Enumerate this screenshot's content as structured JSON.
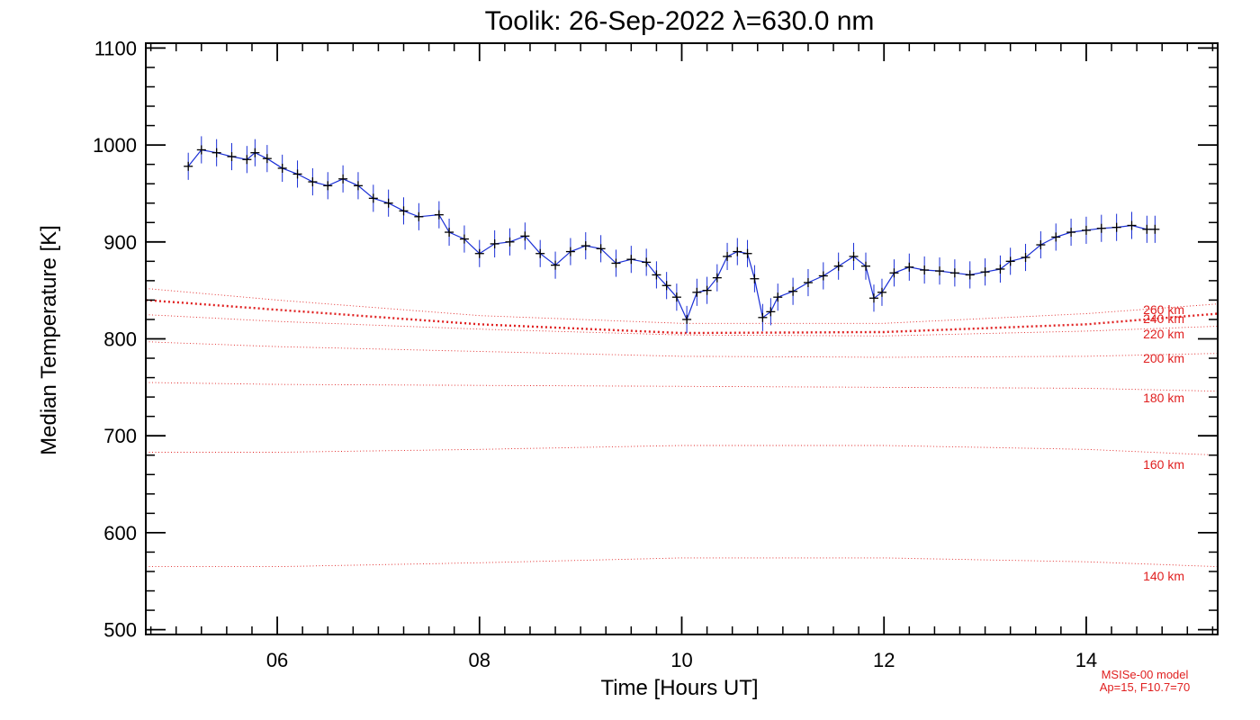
{
  "chart_data": {
    "type": "line",
    "title": "Toolik: 26-Sep-2022 λ=630.0 nm",
    "xlabel": "Time [Hours UT]",
    "ylabel": "Median Temperature [K]",
    "xlim": [
      4.7,
      15.3
    ],
    "ylim": [
      495,
      1105
    ],
    "x_ticks": [
      6,
      8,
      10,
      12,
      14
    ],
    "x_tick_labels": [
      "06",
      "08",
      "10",
      "12",
      "14"
    ],
    "y_ticks": [
      500,
      600,
      700,
      800,
      900,
      1000,
      1100
    ],
    "y_tick_labels": [
      "500",
      "600",
      "700",
      "800",
      "900",
      "1000",
      "1100"
    ],
    "grid": false,
    "observed_series": {
      "color": "#000000",
      "error_color": "#1a2fd6",
      "error_bar_k": 14,
      "x": [
        5.12,
        5.25,
        5.4,
        5.55,
        5.7,
        5.78,
        5.9,
        6.05,
        6.2,
        6.35,
        6.5,
        6.65,
        6.8,
        6.95,
        7.1,
        7.25,
        7.4,
        7.6,
        7.7,
        7.85,
        8.0,
        8.15,
        8.3,
        8.45,
        8.6,
        8.75,
        8.9,
        9.05,
        9.2,
        9.35,
        9.5,
        9.65,
        9.75,
        9.85,
        9.95,
        10.05,
        10.15,
        10.25,
        10.35,
        10.45,
        10.55,
        10.65,
        10.72,
        10.8,
        10.88,
        10.95,
        11.1,
        11.25,
        11.4,
        11.55,
        11.7,
        11.82,
        11.9,
        11.98,
        12.1,
        12.25,
        12.4,
        12.55,
        12.7,
        12.85,
        13.0,
        13.15,
        13.25,
        13.4,
        13.55,
        13.7,
        13.85,
        14.0,
        14.15,
        14.3,
        14.45,
        14.6,
        14.68
      ],
      "y": [
        978,
        995,
        992,
        988,
        985,
        992,
        986,
        976,
        970,
        962,
        958,
        965,
        958,
        945,
        940,
        932,
        926,
        928,
        910,
        903,
        888,
        898,
        900,
        906,
        888,
        876,
        890,
        896,
        893,
        878,
        882,
        879,
        866,
        855,
        843,
        820,
        848,
        850,
        863,
        885,
        890,
        888,
        862,
        822,
        828,
        843,
        849,
        858,
        865,
        875,
        885,
        875,
        842,
        848,
        868,
        874,
        871,
        870,
        868,
        866,
        869,
        872,
        880,
        884,
        897,
        905,
        910,
        912,
        914,
        915,
        917,
        913,
        913
      ]
    },
    "model_note_line1": "MSISe-00 model",
    "model_note_line2": "Ap=15, F10.7=70",
    "model_color": "#e02020",
    "model_curves": [
      {
        "label": "140 km",
        "x": [
          4.7,
          6,
          8,
          10,
          12,
          14,
          15.3
        ],
        "y": [
          565,
          565,
          569,
          574,
          574,
          570,
          565
        ]
      },
      {
        "label": "160 km",
        "x": [
          4.7,
          6,
          8,
          10,
          12,
          14,
          15.3
        ],
        "y": [
          683,
          683,
          686,
          690,
          690,
          686,
          680
        ]
      },
      {
        "label": "180 km",
        "x": [
          4.7,
          6,
          8,
          10,
          12,
          14,
          15.3
        ],
        "y": [
          755,
          753,
          752,
          751,
          750,
          749,
          746
        ]
      },
      {
        "label": "200 km",
        "x": [
          4.7,
          6,
          8,
          10,
          12,
          14,
          15.3
        ],
        "y": [
          797,
          792,
          787,
          782,
          781,
          782,
          785
        ]
      },
      {
        "label": "220 km",
        "x": [
          4.7,
          6,
          8,
          10,
          12,
          14,
          15.3
        ],
        "y": [
          825,
          818,
          810,
          804,
          803,
          808,
          813
        ]
      },
      {
        "label": "240 km",
        "x": [
          4.7,
          6,
          8,
          10,
          12,
          14,
          15.3
        ],
        "y": [
          840,
          830,
          815,
          806,
          807,
          815,
          826
        ]
      },
      {
        "label": "260 km",
        "x": [
          4.7,
          6,
          8,
          10,
          12,
          14,
          15.3
        ],
        "y": [
          852,
          840,
          824,
          816,
          816,
          826,
          836
        ]
      }
    ]
  }
}
